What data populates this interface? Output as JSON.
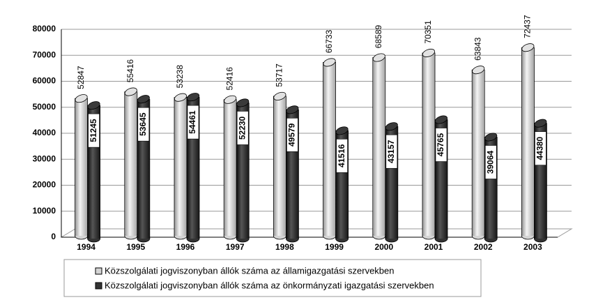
{
  "chart_data": {
    "type": "bar",
    "categories": [
      "1994",
      "1995",
      "1996",
      "1997",
      "1998",
      "1999",
      "2000",
      "2001",
      "2002",
      "2003"
    ],
    "series": [
      {
        "name": "Közszolgálati jogviszonyban állók száma az államigazgatási szervekben",
        "color": "#d4d4d4",
        "values": [
          52847,
          55416,
          53238,
          52416,
          53717,
          66733,
          68589,
          70351,
          63843,
          72437
        ]
      },
      {
        "name": "Közszolgálati jogviszonyban állók száma az önkormányzati igazgatási szervekben",
        "color": "#333333",
        "values": [
          51245,
          53645,
          54461,
          52230,
          49579,
          41516,
          43157,
          45765,
          39064,
          44380
        ]
      }
    ],
    "ylim": [
      0,
      80000
    ],
    "yticks": [
      0,
      10000,
      20000,
      30000,
      40000,
      50000,
      60000,
      70000,
      80000
    ],
    "grid": true
  }
}
